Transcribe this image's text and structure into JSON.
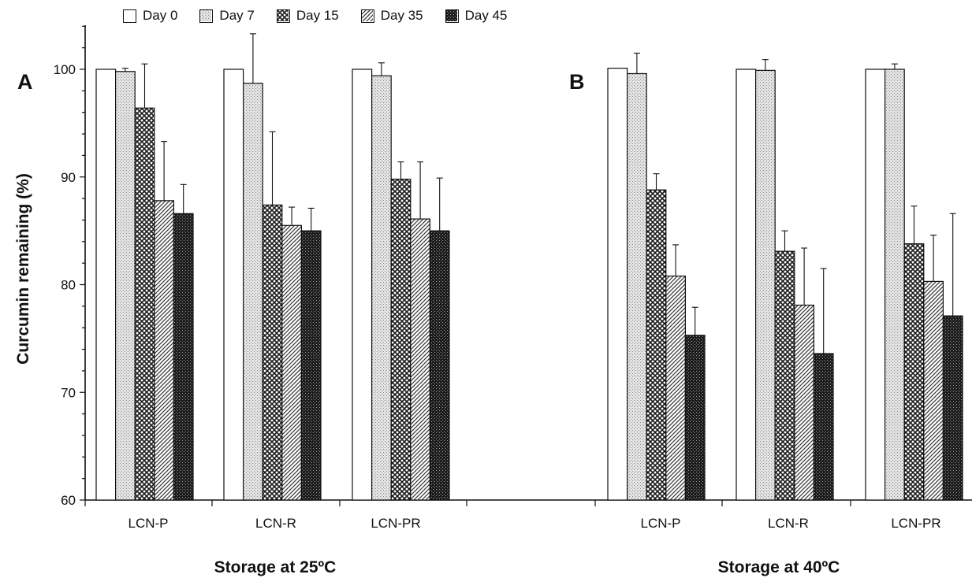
{
  "chart_data": {
    "type": "bar",
    "ylabel": "Curcumin remaining (%)",
    "ylim": [
      60,
      104
    ],
    "yticks": [
      60,
      70,
      80,
      90,
      100
    ],
    "grid": false,
    "legend_position": "top",
    "series_names": [
      "Day 0",
      "Day 7",
      "Day 15",
      "Day 35",
      "Day 45"
    ],
    "series_colors": [
      "#ffffff",
      "#c8c8c8",
      "#6a6a6a",
      "#8c8c8c",
      "#2a2a2a"
    ],
    "panels": [
      {
        "letter": "A",
        "xlabel": "Storage at 25ºC",
        "categories": [
          "LCN-P",
          "LCN-R",
          "LCN-PR"
        ],
        "series": [
          {
            "name": "Day 0",
            "values": [
              100.0,
              100.0,
              100.0
            ],
            "errors": [
              0,
              0,
              0
            ]
          },
          {
            "name": "Day 7",
            "values": [
              99.8,
              98.7,
              99.4
            ],
            "errors": [
              0.3,
              4.6,
              1.2
            ]
          },
          {
            "name": "Day 15",
            "values": [
              96.4,
              87.4,
              89.8
            ],
            "errors": [
              4.1,
              6.8,
              1.6
            ]
          },
          {
            "name": "Day 35",
            "values": [
              87.8,
              85.5,
              86.1
            ],
            "errors": [
              5.5,
              1.7,
              5.3
            ]
          },
          {
            "name": "Day 45",
            "values": [
              86.6,
              85.0,
              85.0
            ],
            "errors": [
              2.7,
              2.1,
              4.9
            ]
          }
        ]
      },
      {
        "letter": "B",
        "xlabel": "Storage at 40ºC",
        "categories": [
          "LCN-P",
          "LCN-R",
          "LCN-PR"
        ],
        "series": [
          {
            "name": "Day 0",
            "values": [
              100.1,
              100.0,
              100.0
            ],
            "errors": [
              0,
              0,
              0
            ]
          },
          {
            "name": "Day 7",
            "values": [
              99.6,
              99.9,
              100.0
            ],
            "errors": [
              1.9,
              1.0,
              0.5
            ]
          },
          {
            "name": "Day 15",
            "values": [
              88.8,
              83.1,
              83.8
            ],
            "errors": [
              1.5,
              1.9,
              3.5
            ]
          },
          {
            "name": "Day 35",
            "values": [
              80.8,
              78.1,
              80.3
            ],
            "errors": [
              2.9,
              5.3,
              4.3
            ]
          },
          {
            "name": "Day 45",
            "values": [
              75.3,
              73.6,
              77.1
            ],
            "errors": [
              2.6,
              7.9,
              9.5
            ]
          }
        ]
      }
    ]
  }
}
